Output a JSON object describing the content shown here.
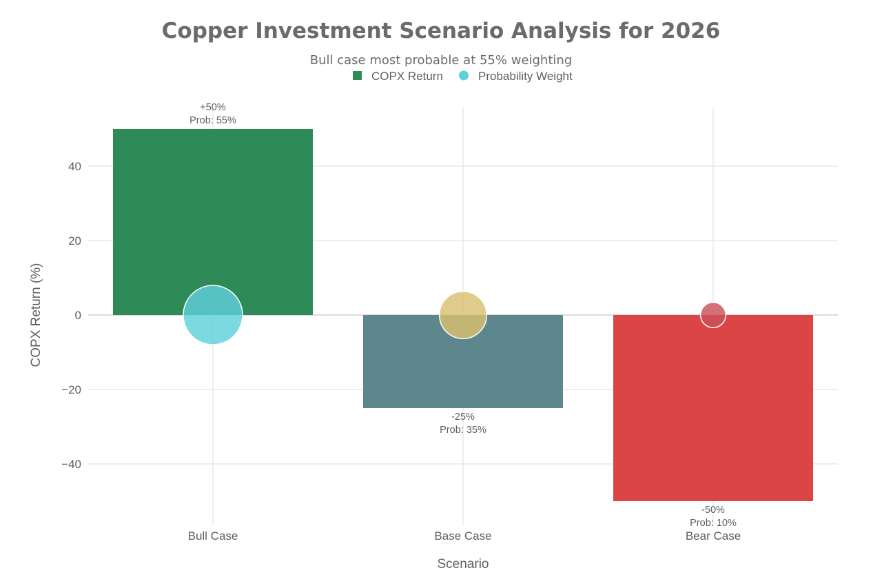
{
  "chart_data": {
    "type": "bar",
    "title": "Copper Investment Scenario Analysis for 2026",
    "subtitle": "Bull case most probable at 55% weighting",
    "xlabel": "Scenario",
    "ylabel": "COPX Return (%)",
    "categories": [
      "Bull Case",
      "Base Case",
      "Bear Case"
    ],
    "ylim": [
      -56,
      57
    ],
    "yticks": [
      {
        "value": 40,
        "label": "40"
      },
      {
        "value": 20,
        "label": "20"
      },
      {
        "value": 0,
        "label": "0"
      },
      {
        "value": -20,
        "label": "−20"
      },
      {
        "value": -40,
        "label": "−40"
      }
    ],
    "grid": true,
    "legend_position": "top-center",
    "legend": [
      {
        "name": "COPX Return",
        "shape": "square",
        "color": "#2e8a57"
      },
      {
        "name": "Probability Weight",
        "shape": "circle",
        "color": "#5fcfda"
      }
    ],
    "series": [
      {
        "name": "COPX Return",
        "type": "bar",
        "values": [
          50,
          -25,
          -50
        ],
        "colors": [
          "#2e8a57",
          "#5e878d",
          "#db4545"
        ],
        "labels": [
          [
            "+50%",
            "Prob: 55%"
          ],
          [
            "-25%",
            "Prob: 35%"
          ],
          [
            "-50%",
            "Prob: 10%"
          ]
        ]
      },
      {
        "name": "Probability Weight",
        "type": "scatter",
        "y": [
          0,
          0,
          0
        ],
        "sizes": [
          55,
          35,
          10
        ],
        "colors": [
          "#5fcfda",
          "#d9c170",
          "#c9505a"
        ]
      }
    ]
  }
}
